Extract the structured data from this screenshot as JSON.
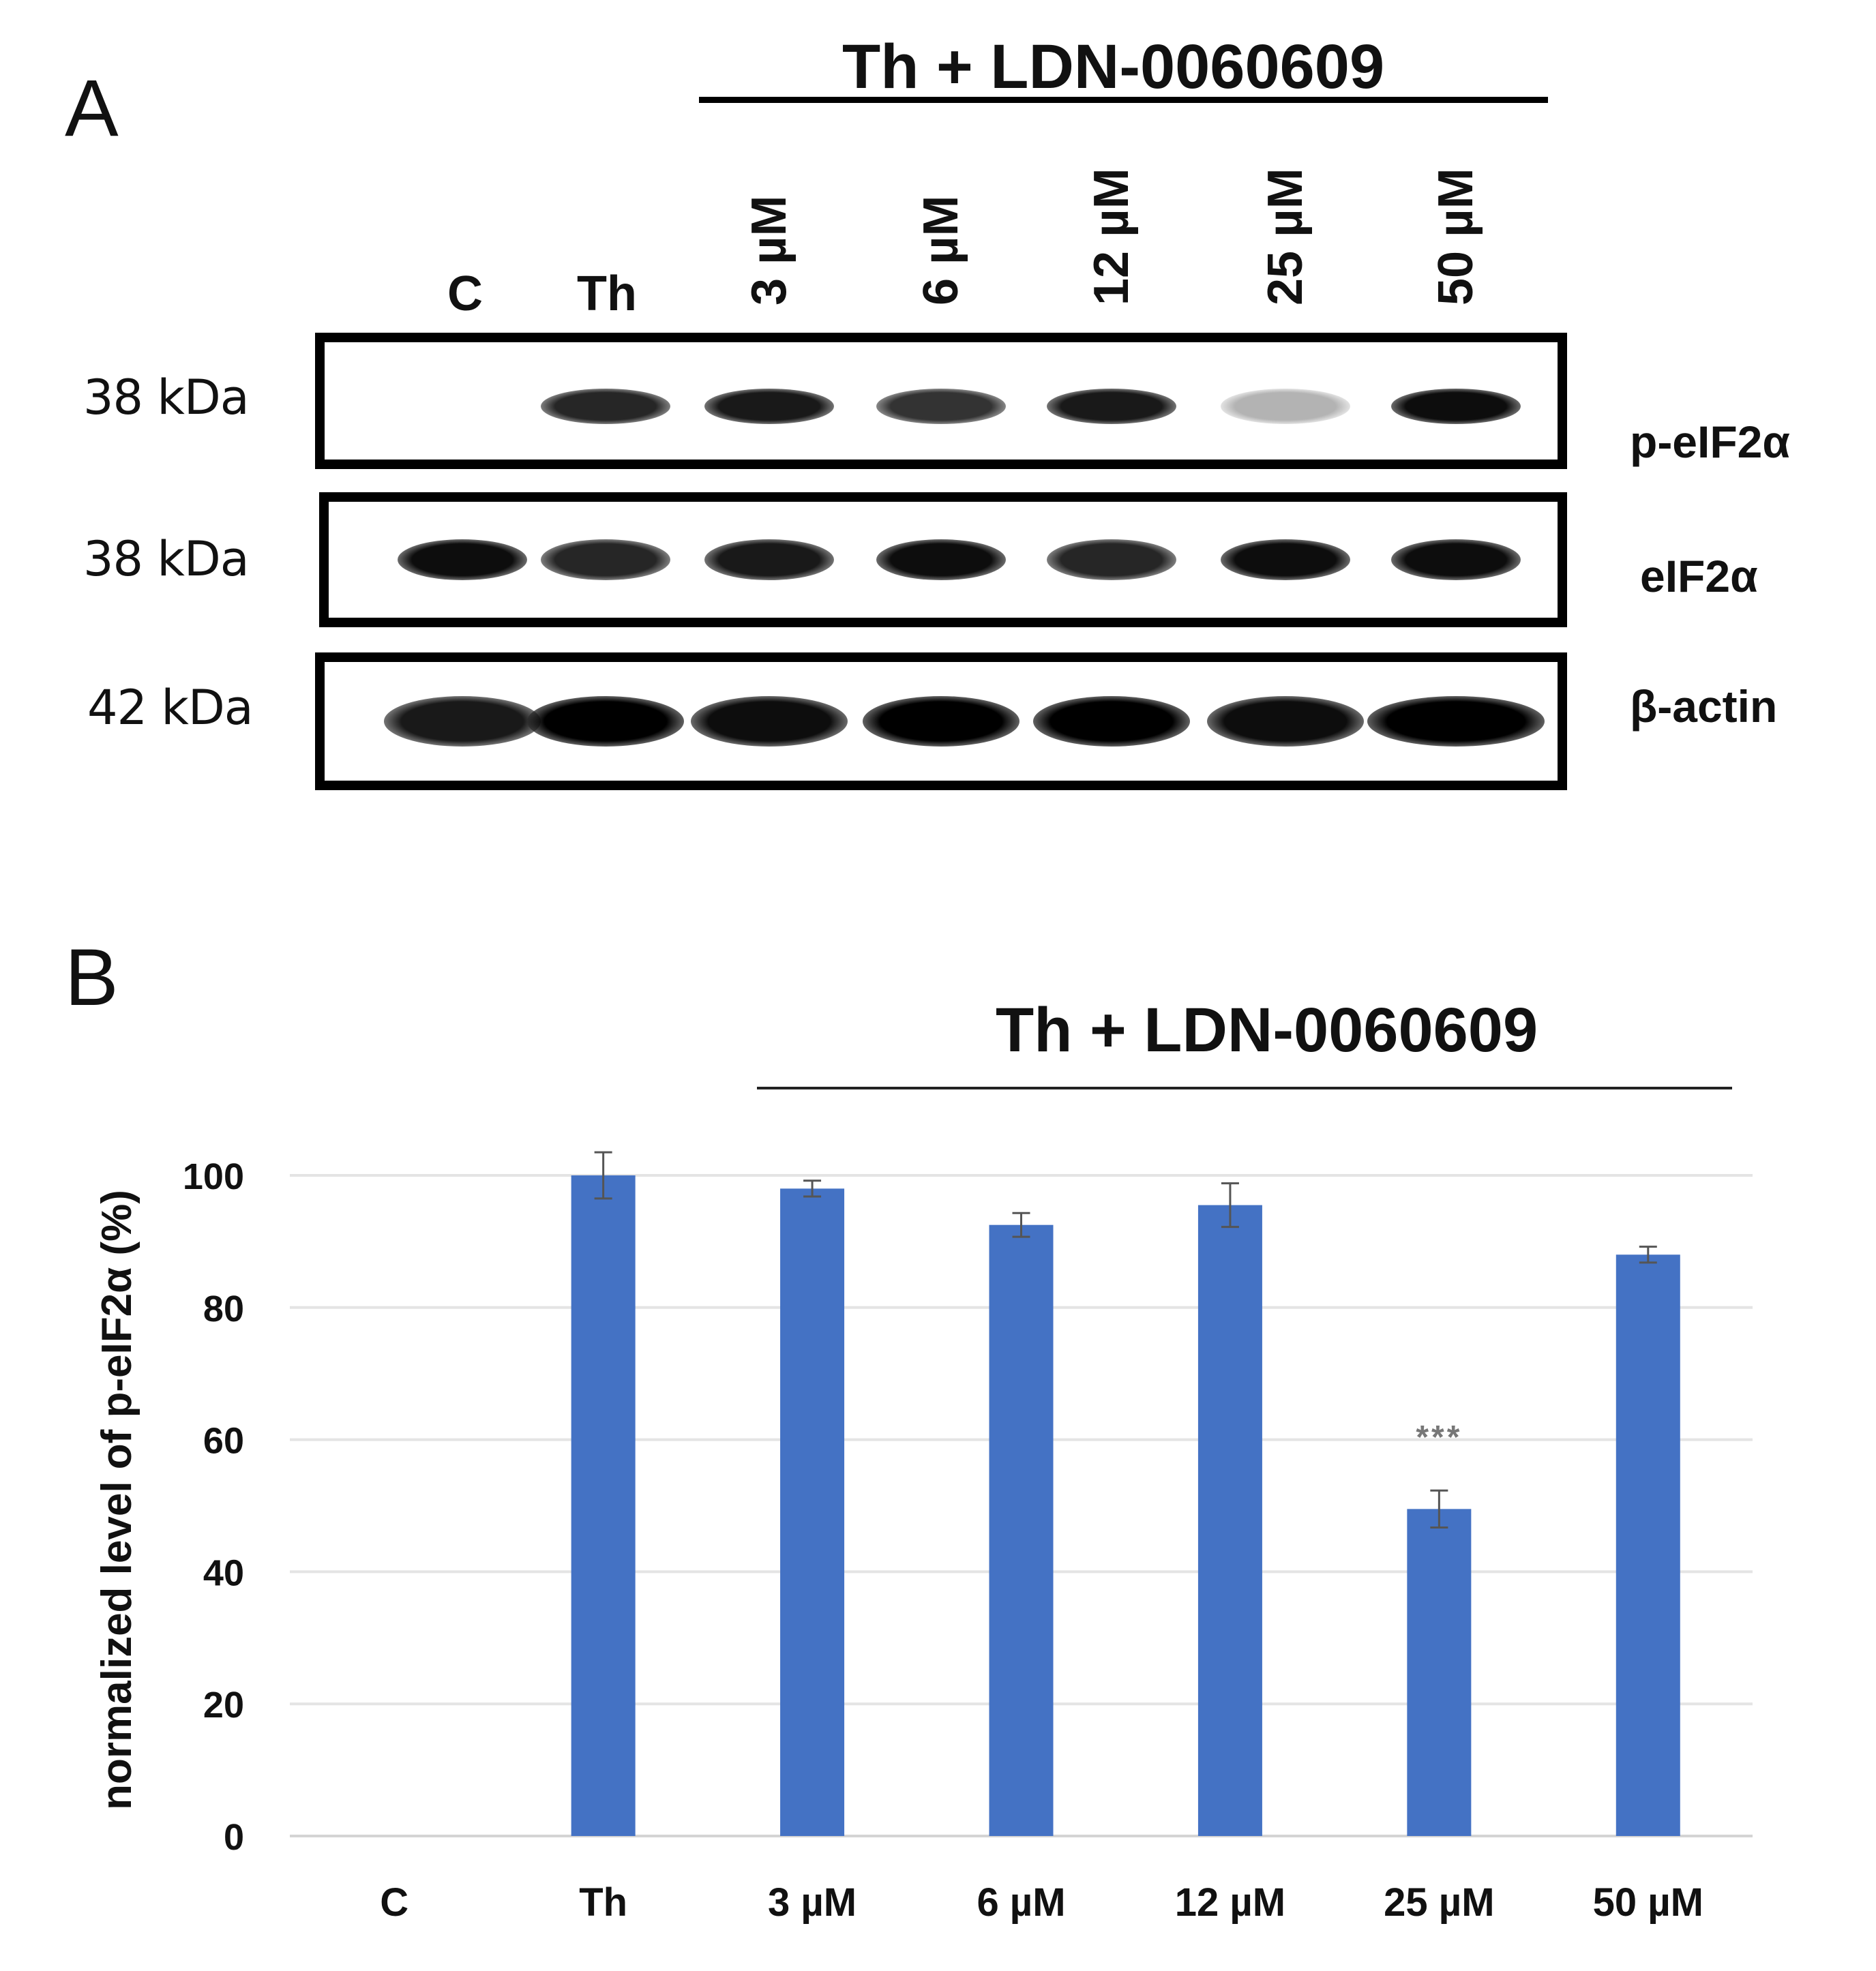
{
  "panel_a": {
    "label": "A",
    "group_title": "Th + LDN-0060609",
    "lanes": [
      "C",
      "Th",
      "3 µM",
      "6 µM",
      "12 µM",
      "25 µM",
      "50 µM"
    ],
    "blots": [
      {
        "mw": "38 kDa",
        "protein": "p-eIF2α",
        "intensity": [
          0.0,
          0.85,
          0.9,
          0.8,
          0.9,
          0.3,
          0.95
        ]
      },
      {
        "mw": "38 kDa",
        "protein": "eIF2α",
        "intensity": [
          0.95,
          0.85,
          0.9,
          0.95,
          0.85,
          0.95,
          0.95
        ]
      },
      {
        "mw": "42 kDa",
        "protein": "β-actin",
        "intensity": [
          0.9,
          1.0,
          0.95,
          1.0,
          1.0,
          0.95,
          1.0
        ]
      }
    ]
  },
  "panel_b": {
    "label": "B",
    "group_title": "Th + LDN-0060609",
    "significance": "***"
  },
  "chart_data": {
    "type": "bar",
    "categories": [
      "C",
      "Th",
      "3 µM",
      "6 µM",
      "12 µM",
      "25 µM",
      "50 µM"
    ],
    "values": [
      0,
      100,
      98,
      92.5,
      95.5,
      49.5,
      88
    ],
    "errors": [
      0,
      3.5,
      1.2,
      1.8,
      3.3,
      2.8,
      1.2
    ],
    "title": "",
    "xlabel": "",
    "ylabel": "normalized level of p-eIF2α (%)",
    "ylim": [
      0,
      100
    ],
    "yticks": [
      0,
      20,
      40,
      60,
      80,
      100
    ],
    "grid": true,
    "bar_color": "#4472c4",
    "annotations": [
      {
        "category": "25 µM",
        "text": "***"
      }
    ]
  }
}
